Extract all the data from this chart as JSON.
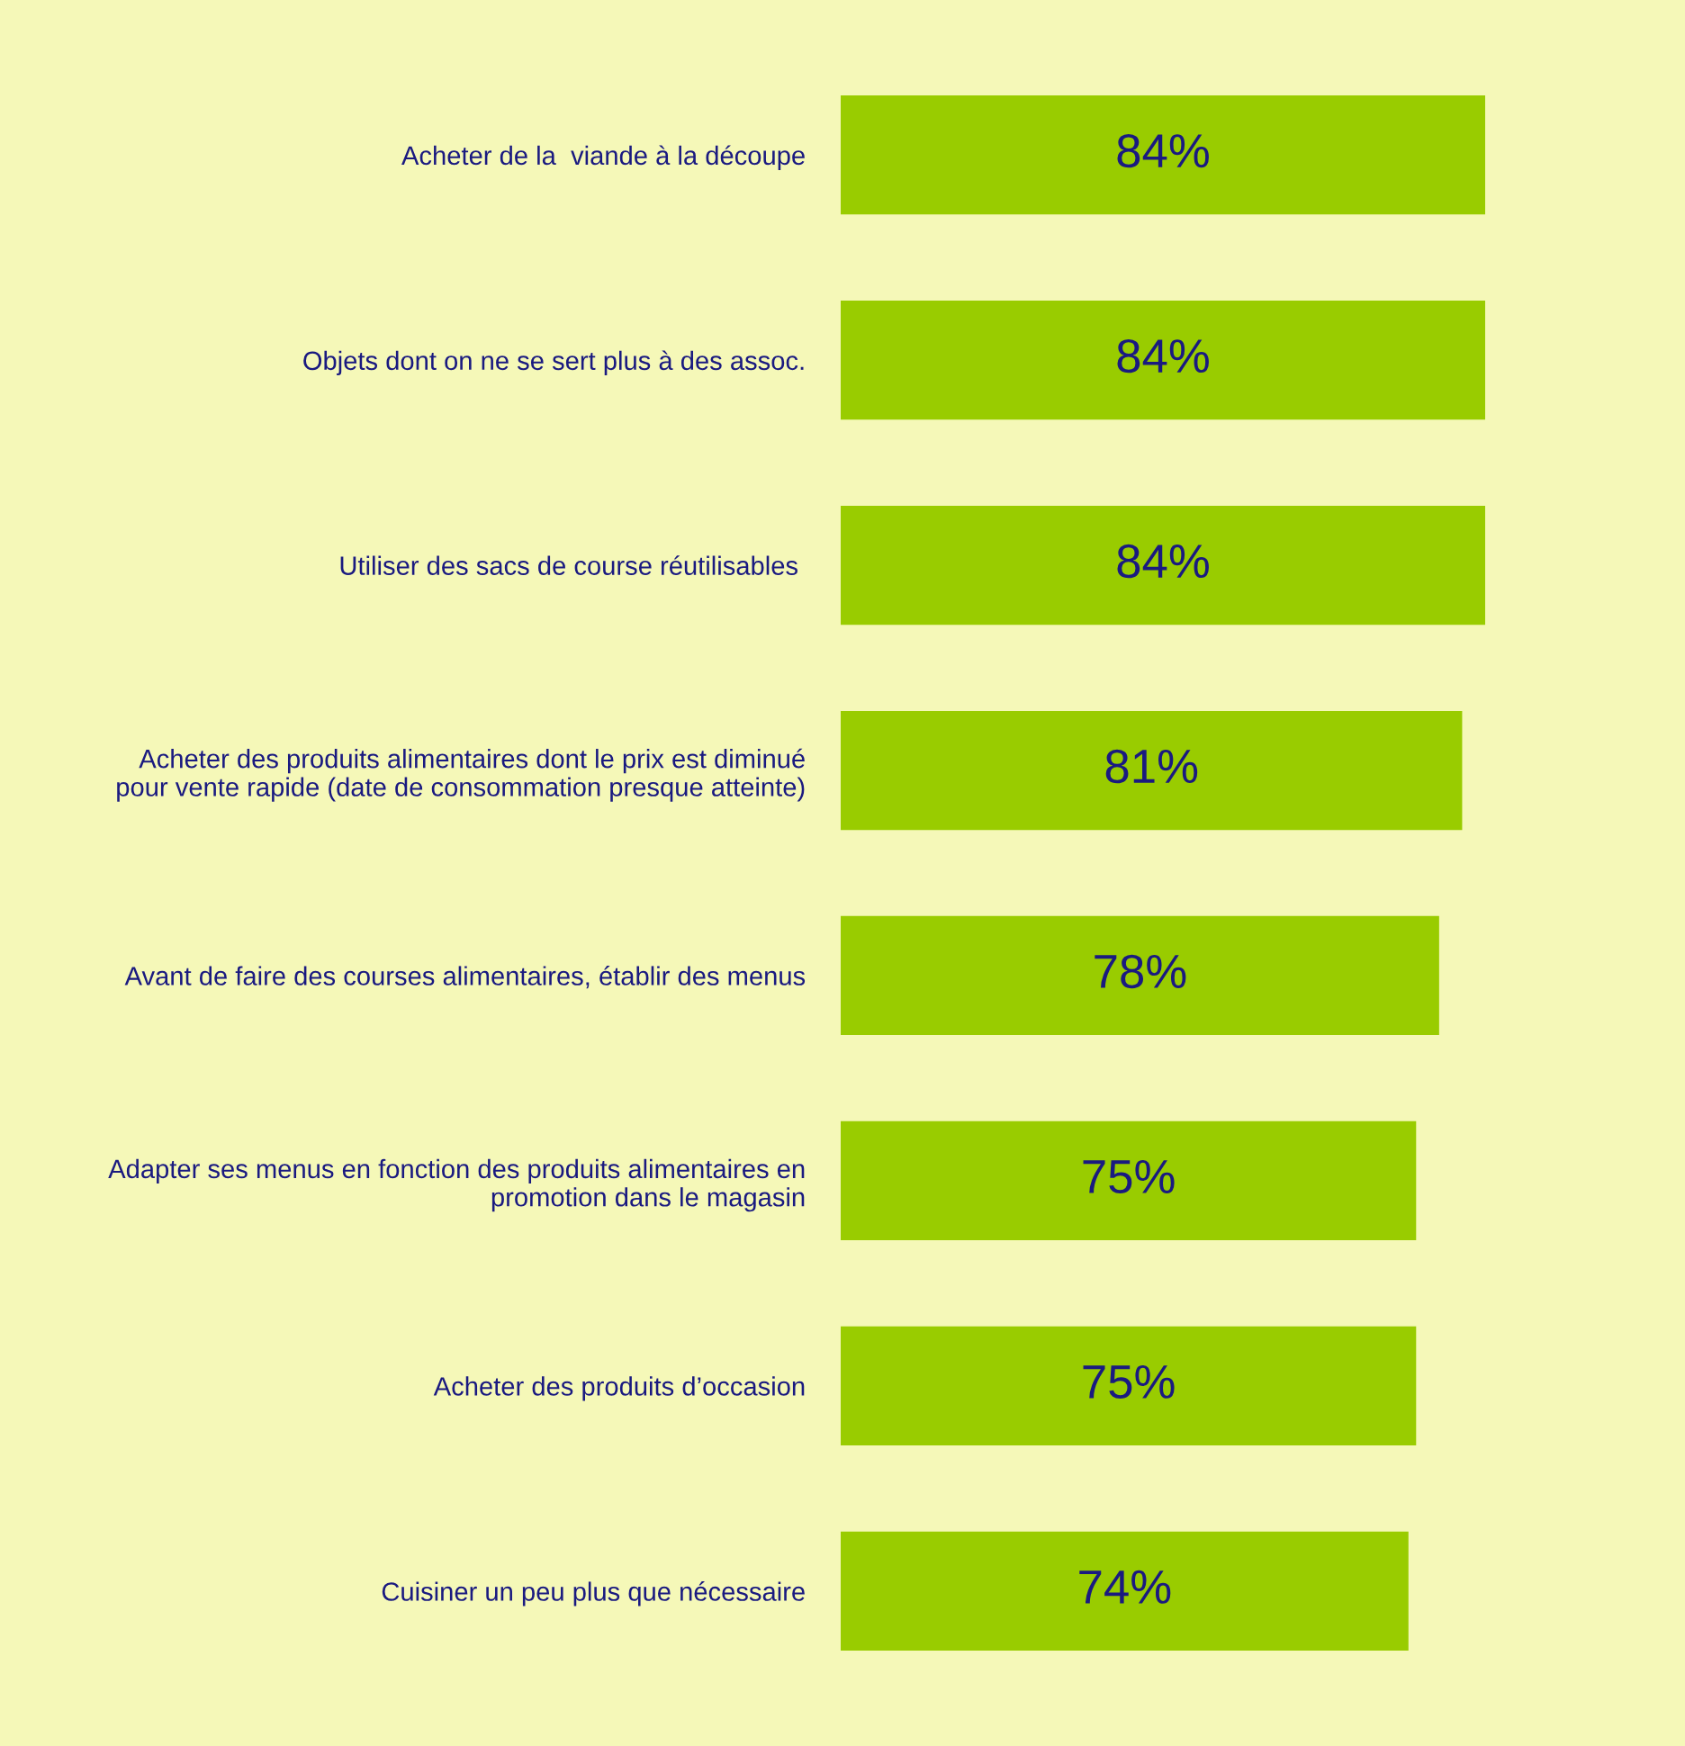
{
  "chart_data": {
    "type": "bar",
    "orientation": "horizontal",
    "categories": [
      "Acheter de la  viande à la découpe",
      "Objets dont on ne se sert plus à des assoc.",
      "Utiliser des sacs de course réutilisables ",
      "Acheter des produits alimentaires dont le prix est diminué\npour vente rapide (date de consommation presque atteinte)",
      "Avant de faire des courses alimentaires, établir des menus",
      "Adapter ses menus en fonction des produits alimentaires en\npromotion dans le magasin",
      "Acheter des produits d’occasion",
      "Cuisiner un peu plus que nécessaire"
    ],
    "values": [
      84,
      84,
      84,
      81,
      78,
      75,
      75,
      74
    ],
    "value_labels": [
      "84%",
      "84%",
      "84%",
      "81%",
      "78%",
      "75%",
      "75%",
      "74%"
    ],
    "color": "#99cc00"
  }
}
